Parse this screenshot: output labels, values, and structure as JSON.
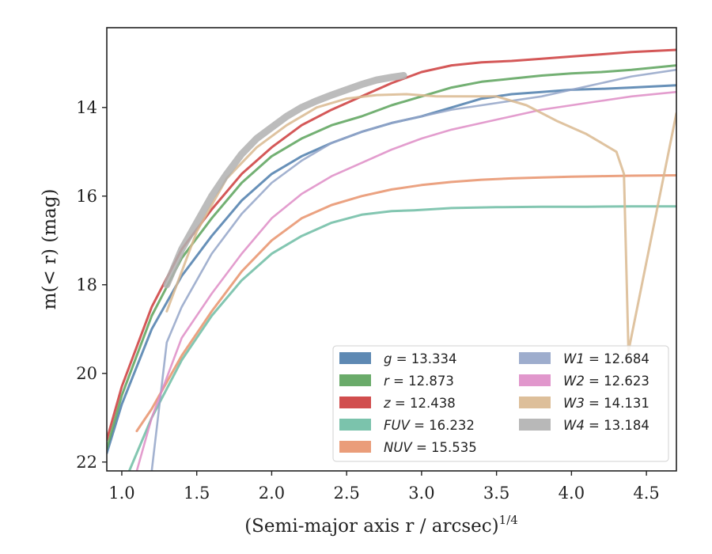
{
  "chart_data": {
    "type": "line",
    "xlabel": "(Semi-major axis r / arcsec)",
    "xlabel_sup": "1/4",
    "ylabel": "m(< r) (mag)",
    "xlim": [
      0.9,
      4.7
    ],
    "ylim": [
      22.2,
      12.2
    ],
    "y_inverted": true,
    "x_ticks": [
      1.0,
      1.5,
      2.0,
      2.5,
      3.0,
      3.5,
      4.0,
      4.5
    ],
    "x_tick_labels": [
      "1.0",
      "1.5",
      "2.0",
      "2.5",
      "3.0",
      "3.5",
      "4.0",
      "4.5"
    ],
    "y_ticks": [
      14,
      16,
      18,
      20,
      22
    ],
    "y_tick_labels": [
      "14",
      "16",
      "18",
      "20",
      "22"
    ],
    "grid": false,
    "legend_position": "lower-right",
    "legend_columns": 2,
    "series": [
      {
        "name": "g",
        "value": "13.334",
        "color": "#4c7cab",
        "x": [
          0.9,
          1.0,
          1.2,
          1.4,
          1.6,
          1.8,
          2.0,
          2.2,
          2.4,
          2.6,
          2.8,
          3.0,
          3.2,
          3.4,
          3.6,
          3.8,
          4.0,
          4.2,
          4.4,
          4.7
        ],
        "y": [
          21.8,
          20.7,
          19.0,
          17.8,
          16.9,
          16.1,
          15.5,
          15.1,
          14.8,
          14.55,
          14.35,
          14.2,
          14.0,
          13.8,
          13.7,
          13.65,
          13.6,
          13.58,
          13.55,
          13.5
        ]
      },
      {
        "name": "r",
        "value": "12.873",
        "color": "#5aa25a",
        "x": [
          0.9,
          1.0,
          1.2,
          1.4,
          1.6,
          1.8,
          2.0,
          2.2,
          2.4,
          2.6,
          2.8,
          3.0,
          3.2,
          3.4,
          3.6,
          3.8,
          4.0,
          4.2,
          4.4,
          4.7
        ],
        "y": [
          21.7,
          20.5,
          18.7,
          17.4,
          16.5,
          15.7,
          15.1,
          14.7,
          14.4,
          14.2,
          13.95,
          13.75,
          13.55,
          13.42,
          13.35,
          13.28,
          13.23,
          13.2,
          13.15,
          13.05
        ]
      },
      {
        "name": "z",
        "value": "12.438",
        "color": "#cc3b3b",
        "x": [
          0.9,
          1.0,
          1.2,
          1.4,
          1.6,
          1.8,
          2.0,
          2.2,
          2.4,
          2.6,
          2.8,
          3.0,
          3.2,
          3.4,
          3.6,
          3.8,
          4.0,
          4.2,
          4.4,
          4.7
        ],
        "y": [
          21.5,
          20.3,
          18.5,
          17.2,
          16.3,
          15.5,
          14.9,
          14.4,
          14.05,
          13.75,
          13.45,
          13.2,
          13.05,
          12.98,
          12.95,
          12.9,
          12.85,
          12.8,
          12.75,
          12.7
        ]
      },
      {
        "name": "FUV",
        "value": "16.232",
        "color": "#6dbca3",
        "x": [
          1.05,
          1.2,
          1.4,
          1.6,
          1.8,
          2.0,
          2.2,
          2.4,
          2.6,
          2.8,
          2.95,
          3.2,
          3.5,
          3.8,
          4.1,
          4.4,
          4.7
        ],
        "y": [
          22.2,
          21.0,
          19.7,
          18.7,
          17.9,
          17.3,
          16.9,
          16.6,
          16.42,
          16.34,
          16.32,
          16.27,
          16.25,
          16.24,
          16.24,
          16.23,
          16.23
        ]
      },
      {
        "name": "NUV",
        "value": "15.535",
        "color": "#e8926b",
        "x": [
          1.1,
          1.2,
          1.4,
          1.6,
          1.8,
          2.0,
          2.2,
          2.4,
          2.6,
          2.8,
          3.0,
          3.2,
          3.4,
          3.6,
          3.8,
          4.0,
          4.2,
          4.4,
          4.7
        ],
        "y": [
          21.3,
          20.8,
          19.6,
          18.6,
          17.7,
          17.0,
          16.5,
          16.2,
          16.0,
          15.85,
          15.75,
          15.68,
          15.63,
          15.6,
          15.58,
          15.56,
          15.55,
          15.54,
          15.53
        ]
      },
      {
        "name": "W1",
        "value": "12.684",
        "color": "#93a4c8",
        "x": [
          1.2,
          1.3,
          1.4,
          1.6,
          1.8,
          2.0,
          2.2,
          2.4,
          2.6,
          2.8,
          3.0,
          3.2,
          3.4,
          3.6,
          3.8,
          4.0,
          4.2,
          4.4,
          4.7
        ],
        "y": [
          22.2,
          19.3,
          18.5,
          17.3,
          16.4,
          15.7,
          15.2,
          14.8,
          14.55,
          14.35,
          14.2,
          14.05,
          13.95,
          13.85,
          13.75,
          13.6,
          13.45,
          13.3,
          13.15
        ]
      },
      {
        "name": "W2",
        "value": "12.623",
        "color": "#de8cc6",
        "x": [
          1.1,
          1.2,
          1.4,
          1.6,
          1.8,
          2.0,
          2.2,
          2.4,
          2.6,
          2.8,
          3.0,
          3.2,
          3.4,
          3.6,
          3.8,
          4.0,
          4.2,
          4.4,
          4.7
        ],
        "y": [
          22.2,
          21.0,
          19.2,
          18.2,
          17.3,
          16.5,
          15.95,
          15.55,
          15.25,
          14.95,
          14.7,
          14.5,
          14.35,
          14.2,
          14.05,
          13.95,
          13.85,
          13.75,
          13.65
        ]
      },
      {
        "name": "W3",
        "value": "14.131",
        "color": "#d9b88f",
        "x": [
          1.3,
          1.5,
          1.7,
          1.9,
          2.1,
          2.3,
          2.5,
          2.7,
          2.9,
          3.1,
          3.3,
          3.5,
          3.7,
          3.9,
          4.1,
          4.2,
          4.3,
          4.35,
          4.38,
          4.7
        ],
        "y": [
          18.6,
          16.8,
          15.6,
          14.9,
          14.4,
          14.0,
          13.8,
          13.72,
          13.7,
          13.75,
          13.75,
          13.75,
          13.95,
          14.3,
          14.6,
          14.8,
          15.0,
          15.5,
          19.5,
          14.13
        ]
      },
      {
        "name": "W4",
        "value": "13.184",
        "color": "#b0b0b0",
        "x": [
          1.3,
          1.4,
          1.5,
          1.6,
          1.7,
          1.8,
          1.9,
          2.0,
          2.1,
          2.2,
          2.3,
          2.4,
          2.5,
          2.6,
          2.7,
          2.8,
          2.88
        ],
        "y": [
          18.0,
          17.2,
          16.6,
          16.0,
          15.5,
          15.05,
          14.7,
          14.45,
          14.2,
          14.0,
          13.85,
          13.72,
          13.6,
          13.48,
          13.38,
          13.32,
          13.28
        ]
      }
    ]
  }
}
